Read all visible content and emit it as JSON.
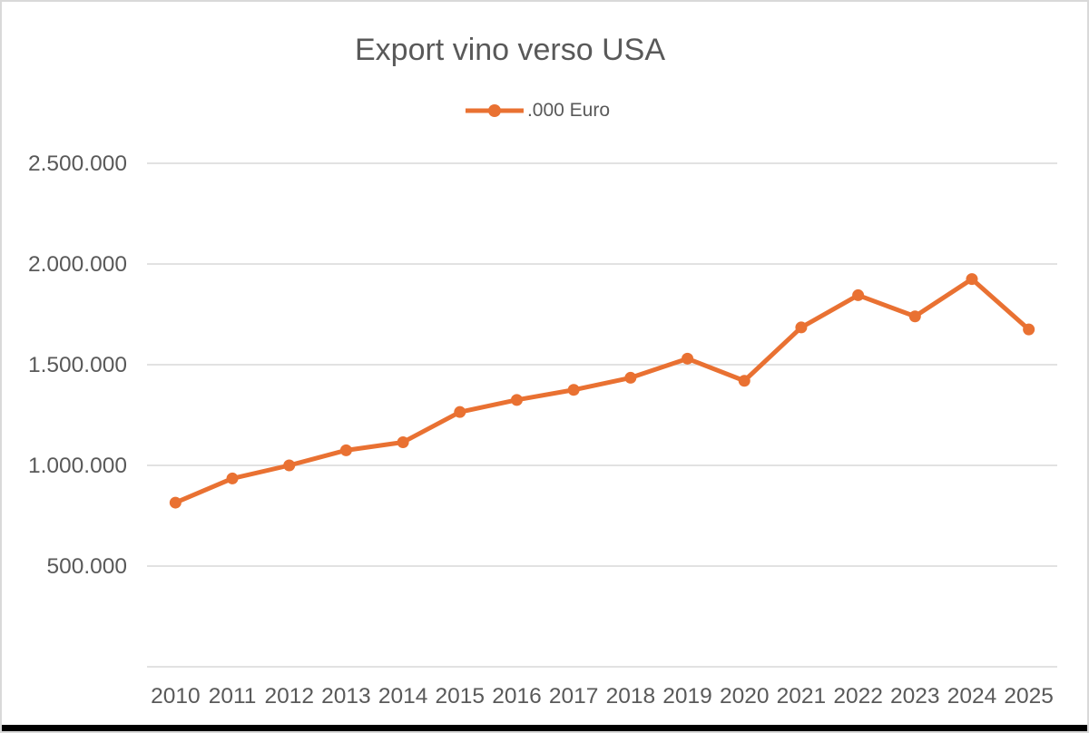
{
  "page": {
    "background_color": "#ffffff",
    "frame_border_color": "#d9d9d9",
    "bottom_bar_color": "#000000"
  },
  "chart_data": {
    "type": "line",
    "title": "Export vino verso USA",
    "categories": [
      "2010",
      "2011",
      "2012",
      "2013",
      "2014",
      "2015",
      "2016",
      "2017",
      "2018",
      "2019",
      "2020",
      "2021",
      "2022",
      "2023",
      "2024",
      "2025"
    ],
    "series": [
      {
        "name": ".000 Euro",
        "color": "#E97132",
        "values": [
          815000,
          935000,
          1000000,
          1075000,
          1115000,
          1265000,
          1325000,
          1375000,
          1435000,
          1530000,
          1420000,
          1685000,
          1845000,
          1740000,
          1925000,
          1675000
        ]
      }
    ],
    "xlabel": "",
    "ylabel": "",
    "ylim": [
      0,
      2500000
    ],
    "y_ticks": [
      {
        "value": 500000,
        "label": "500.000"
      },
      {
        "value": 1000000,
        "label": "1.000.000"
      },
      {
        "value": 1500000,
        "label": "1.500.000"
      },
      {
        "value": 2000000,
        "label": "2.000.000"
      },
      {
        "value": 2500000,
        "label": "2.500.000"
      }
    ],
    "grid": true,
    "legend_position": "top",
    "text_color": "#595959",
    "grid_color": "#d9d9d9",
    "marker": "circle"
  }
}
